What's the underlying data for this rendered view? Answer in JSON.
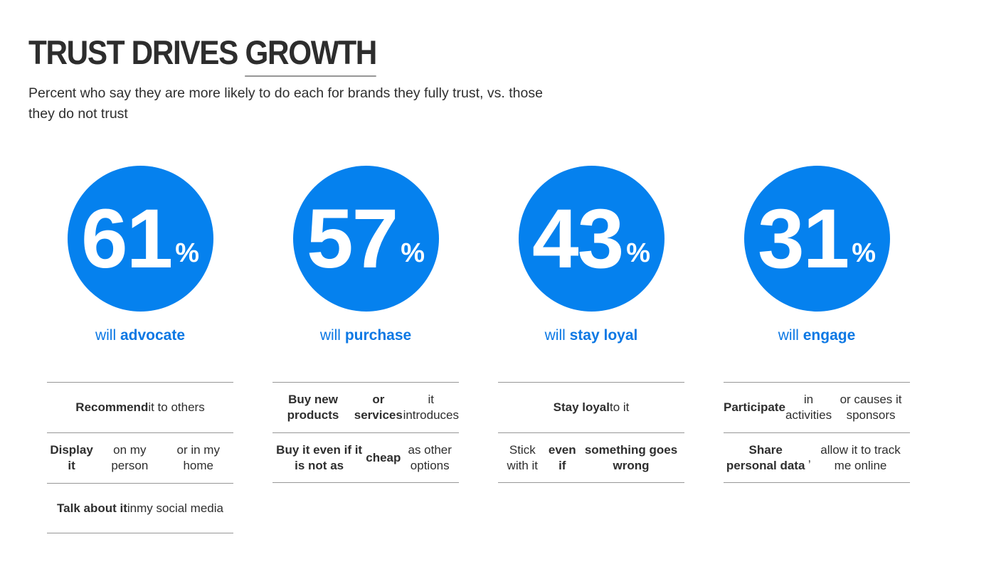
{
  "header": {
    "title_main": "TRUST DRIVES ",
    "title_underlined": "GROWTH",
    "subtitle": "Percent who say they are more likely to do each for brands they fully trust, vs. those\nthey do not trust"
  },
  "labels": {
    "percent_sign": "%"
  },
  "colors": {
    "circle_fill": "#0581ee",
    "circle_text": "#ffffff",
    "label_blue": "#0c78e4",
    "title_text": "#2d2d2d",
    "body_text": "#2e2e2e",
    "divider_gray": "#979797"
  },
  "columns": [
    {
      "value": "61",
      "label": [
        {
          "t": "will ",
          "b": false
        },
        {
          "t": "advocate",
          "b": true
        }
      ],
      "items": [
        [
          {
            "t": "Recommend",
            "b": true
          },
          {
            "t": " it to others",
            "b": false
          }
        ],
        [
          {
            "t": "Display it",
            "b": true
          },
          {
            "t": " on my person\nor in my home",
            "b": false
          }
        ],
        [
          {
            "t": "Talk about it",
            "b": true
          },
          {
            "t": " in\nmy social media",
            "b": false
          }
        ]
      ]
    },
    {
      "value": "57",
      "label": [
        {
          "t": "will ",
          "b": false
        },
        {
          "t": "purchase",
          "b": true
        }
      ],
      "items": [
        [
          {
            "t": "Buy new products\nor services",
            "b": true
          },
          {
            "t": " it introduces",
            "b": false
          }
        ],
        [
          {
            "t": "Buy it even if it is not as\ncheap",
            "b": true
          },
          {
            "t": " as other options",
            "b": false
          }
        ]
      ]
    },
    {
      "value": "43",
      "label": [
        {
          "t": "will ",
          "b": false
        },
        {
          "t": "stay loyal",
          "b": true
        }
      ],
      "items": [
        [
          {
            "t": "Stay loyal",
            "b": true
          },
          {
            "t": " to it",
            "b": false
          }
        ],
        [
          {
            "t": "Stick with it ",
            "b": false
          },
          {
            "t": "even if\nsomething goes wrong",
            "b": true
          }
        ]
      ]
    },
    {
      "value": "31",
      "label": [
        {
          "t": "will ",
          "b": false
        },
        {
          "t": "engage",
          "b": true
        }
      ],
      "items": [
        [
          {
            "t": "Participate",
            "b": true
          },
          {
            "t": " in activities\nor causes it sponsors",
            "b": false
          }
        ],
        [
          {
            "t": "Share personal data",
            "b": true
          },
          {
            "t": ",\nallow it to track me online",
            "b": false
          }
        ]
      ]
    }
  ],
  "chart_data": {
    "type": "table",
    "title": "TRUST DRIVES GROWTH",
    "subtitle": "Percent who say they are more likely to do each for brands they fully trust, vs. those they do not trust",
    "categories": [
      "will advocate",
      "will purchase",
      "will stay loyal",
      "will engage"
    ],
    "values": [
      61,
      57,
      43,
      31
    ],
    "unit": "%",
    "details": [
      [
        "Recommend it to others",
        "Display it on my person or in my home",
        "Talk about it in my social media"
      ],
      [
        "Buy new products or services it introduces",
        "Buy it even if it is not as cheap as other options"
      ],
      [
        "Stay loyal to it",
        "Stick with it even if something goes wrong"
      ],
      [
        "Participate in activities or causes it sponsors",
        "Share personal data, allow it to track me online"
      ]
    ]
  }
}
